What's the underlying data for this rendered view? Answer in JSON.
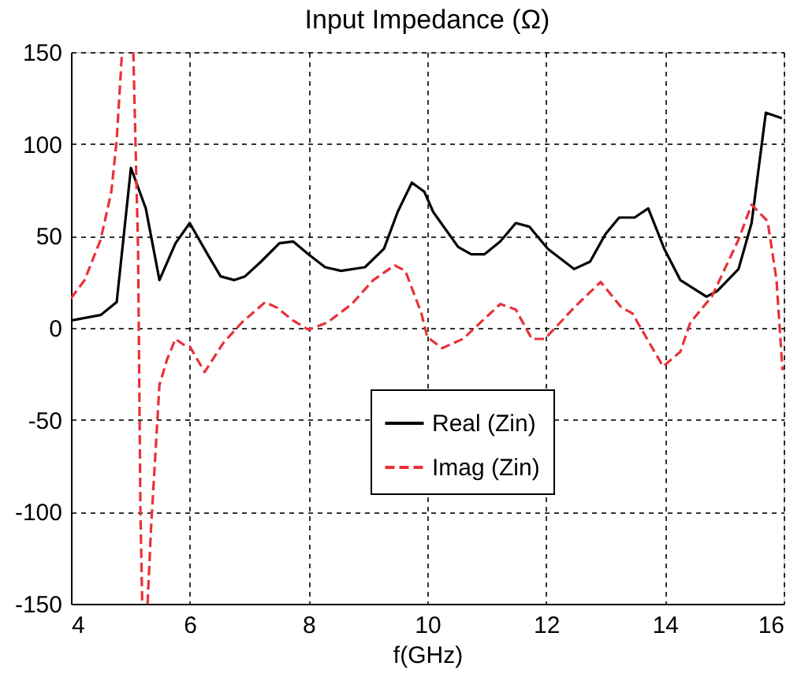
{
  "chart_data": {
    "type": "line",
    "title": "Input Impedance (Ω)",
    "xlabel": "f(GHz)",
    "xlim": [
      4,
      16
    ],
    "xticks": [
      4,
      6,
      8,
      10,
      12,
      14,
      16
    ],
    "ylim": [
      -150,
      150
    ],
    "yticks": [
      -150,
      -100,
      -50,
      0,
      50,
      100,
      150
    ],
    "grid": true,
    "legend": "bottom",
    "marker": "none",
    "series": [
      {
        "name": "Real (Zin)",
        "color": "#000000",
        "line_style": "solid",
        "x": [
          4,
          4.5,
          4.77,
          5.01,
          5.26,
          5.49,
          5.76,
          6.0,
          6.3,
          6.52,
          6.75,
          6.93,
          7.2,
          7.51,
          7.74,
          8.0,
          8.28,
          8.55,
          8.95,
          9.27,
          9.5,
          9.74,
          9.95,
          10.1,
          10.52,
          10.74,
          10.96,
          11.23,
          11.49,
          11.72,
          12.03,
          12.47,
          12.74,
          13.0,
          13.23,
          13.49,
          13.72,
          13.99,
          14.26,
          14.7,
          14.88,
          15.24,
          15.46,
          15.7,
          15.97
        ],
        "values": [
          4,
          7,
          14,
          87,
          65,
          26,
          46,
          57,
          40,
          28,
          26,
          28,
          36,
          46,
          47,
          40,
          33,
          31,
          33,
          43,
          63,
          79,
          74,
          63,
          44,
          40,
          40,
          47,
          57,
          55,
          43,
          32,
          36,
          51,
          60,
          60,
          65,
          43,
          26,
          17,
          20,
          32,
          57,
          117,
          114
        ]
      },
      {
        "name": "Imag (Zin)",
        "color": "#e8313a",
        "line_style": "dashed",
        "x": [
          4,
          4.23,
          4.5,
          4.68,
          4.77,
          4.86,
          4.95,
          5.05,
          5.13,
          5.17,
          5.2,
          5.25,
          5.29,
          5.35,
          5.49,
          5.62,
          5.76,
          5.89,
          6.0,
          6.25,
          6.57,
          6.88,
          7.27,
          7.47,
          7.74,
          8.0,
          8.32,
          8.73,
          9.09,
          9.45,
          9.63,
          9.9,
          10.0,
          10.25,
          10.6,
          11.23,
          11.49,
          11.76,
          11.98,
          12.47,
          12.92,
          13.27,
          13.45,
          13.97,
          14.26,
          14.43,
          14.79,
          15.24,
          15.46,
          15.73,
          15.88,
          15.98
        ],
        "values": [
          16,
          26,
          48,
          74,
          102,
          150,
          null,
          150,
          43,
          -100,
          -150,
          null,
          -150,
          -108,
          -31,
          -17,
          -6,
          -9,
          -10,
          -24,
          -8,
          3,
          14,
          11,
          4,
          -1,
          3,
          13,
          26,
          34,
          31,
          8,
          -5,
          -11,
          -6,
          13,
          10,
          -6,
          -6,
          11,
          25,
          11,
          8,
          -21,
          -13,
          3,
          17,
          48,
          67,
          58,
          26,
          -23
        ]
      }
    ]
  }
}
